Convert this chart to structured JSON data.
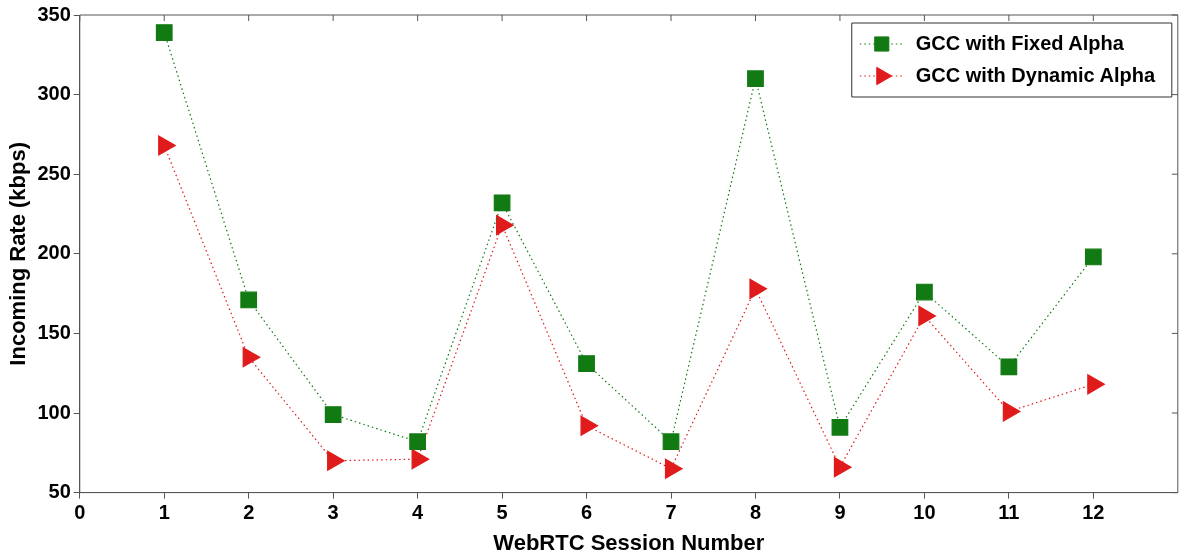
{
  "chart_data": {
    "type": "line",
    "xlabel": "WebRTC Session Number",
    "ylabel": "Incoming Rate (kbps)",
    "x": [
      1,
      2,
      3,
      4,
      5,
      6,
      7,
      8,
      9,
      10,
      11,
      12
    ],
    "xlim": [
      0,
      13
    ],
    "xticks": [
      0,
      1,
      2,
      3,
      4,
      5,
      6,
      7,
      8,
      9,
      10,
      11,
      12
    ],
    "ylim": [
      50,
      350
    ],
    "yticks": [
      50,
      100,
      150,
      200,
      250,
      300,
      350
    ],
    "grid": false,
    "legend": "top right",
    "line_style": "dotted",
    "series": [
      {
        "name": "GCC with Fixed Alpha",
        "color": "#127a12",
        "marker": "square",
        "values": [
          339,
          171,
          99,
          82,
          232,
          131,
          82,
          310,
          91,
          176,
          129,
          198
        ]
      },
      {
        "name": "GCC with Dynamic Alpha",
        "color": "#e01b1b",
        "marker": "triangle",
        "values": [
          268,
          135,
          70,
          71,
          218,
          92,
          65,
          178,
          66,
          161,
          101,
          118
        ]
      }
    ]
  }
}
